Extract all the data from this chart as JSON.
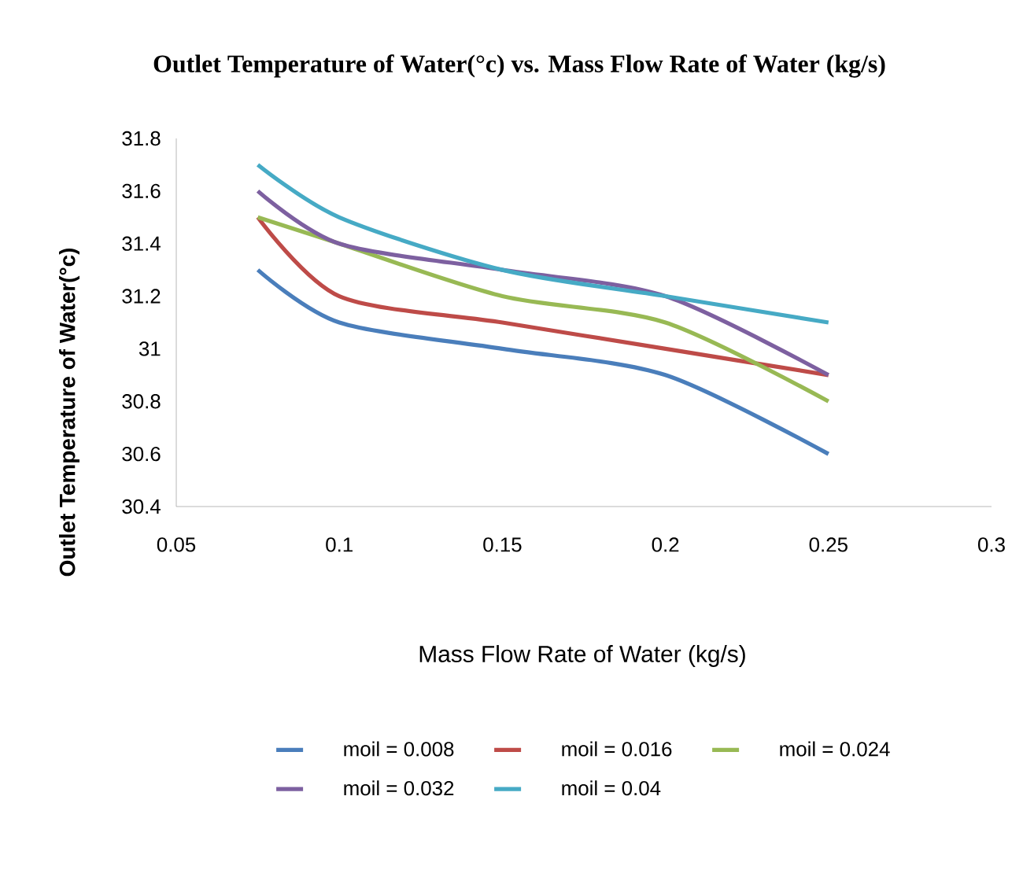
{
  "chart_data": {
    "type": "line",
    "title": "Outlet Temperature of Water(°c) vs. Mass Flow Rate of Water (kg/s)",
    "xlabel": "Mass Flow Rate of Water (kg/s)",
    "ylabel": "Outlet Temperature of Water(°c)",
    "x": [
      0.075,
      0.1,
      0.15,
      0.2,
      0.25
    ],
    "series": [
      {
        "name": "moil = 0.008",
        "color": "#4a7ebb",
        "values": [
          31.3,
          31.1,
          31.0,
          30.9,
          30.6
        ]
      },
      {
        "name": "moil = 0.016",
        "color": "#be4b48",
        "values": [
          31.5,
          31.2,
          31.1,
          31.0,
          30.9
        ]
      },
      {
        "name": "moil = 0.024",
        "color": "#98b954",
        "values": [
          31.5,
          31.4,
          31.2,
          31.1,
          30.8
        ]
      },
      {
        "name": "moil = 0.032",
        "color": "#7d60a0",
        "values": [
          31.6,
          31.4,
          31.3,
          31.2,
          30.9
        ]
      },
      {
        "name": "moil = 0.04",
        "color": "#46aac5",
        "values": [
          31.7,
          31.5,
          31.3,
          31.2,
          31.1
        ]
      }
    ],
    "xlim": [
      0.05,
      0.3
    ],
    "xticks": [
      0.05,
      0.1,
      0.15,
      0.2,
      0.25,
      0.3
    ],
    "ylim": [
      30.4,
      31.8
    ],
    "yticks": [
      30.4,
      30.6,
      30.8,
      31,
      31.2,
      31.4,
      31.6,
      31.8
    ],
    "grid": false,
    "legend": "bottom",
    "marker": "none",
    "line_style": "solid"
  }
}
